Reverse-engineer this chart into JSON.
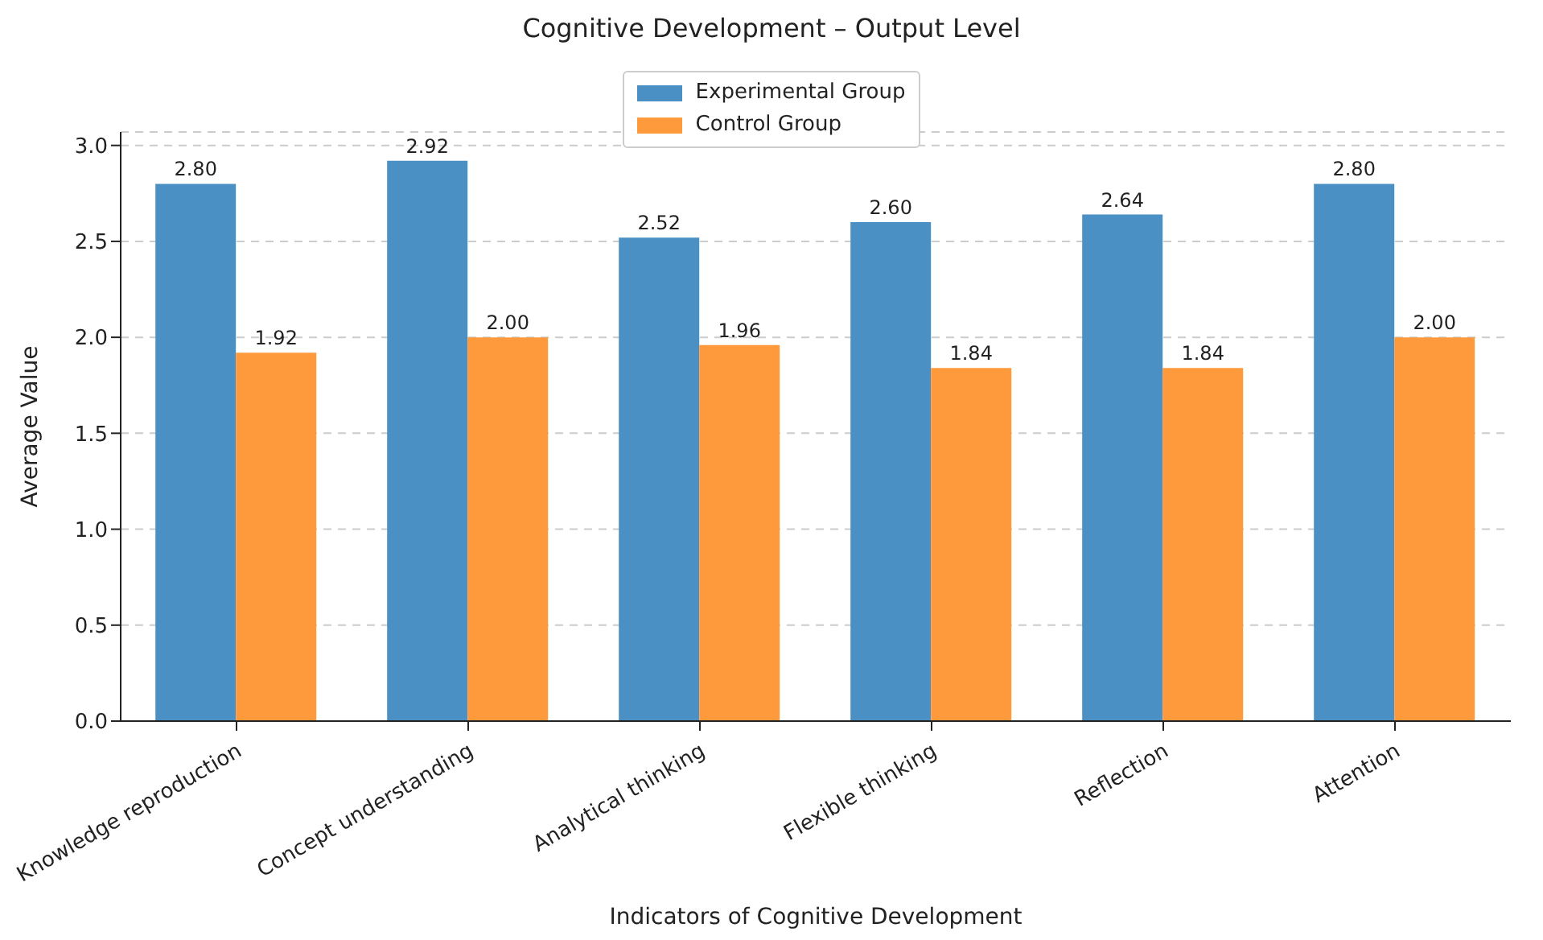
{
  "chart_data": {
    "type": "bar",
    "title": "Cognitive Development – Output Level",
    "xlabel": "Indicators of Cognitive Development",
    "ylabel": "Average Value",
    "categories": [
      "Knowledge reproduction",
      "Concept understanding",
      "Analytical thinking",
      "Flexible thinking",
      "Reflection",
      "Attention"
    ],
    "series": [
      {
        "name": "Experimental Group",
        "color": "#4a90c4",
        "values": [
          2.8,
          2.92,
          2.52,
          2.6,
          2.64,
          2.8
        ],
        "value_labels": [
          "2.80",
          "2.92",
          "2.52",
          "2.60",
          "2.64",
          "2.80"
        ]
      },
      {
        "name": "Control Group",
        "color": "#ff9a3c",
        "values": [
          1.92,
          2.0,
          1.96,
          1.84,
          1.84,
          2.0
        ],
        "value_labels": [
          "1.92",
          "2.00",
          "1.96",
          "1.84",
          "1.84",
          "2.00"
        ]
      }
    ],
    "ylim": [
      0,
      3.07
    ],
    "yticks": [
      {
        "value": 0,
        "label": "0.0"
      },
      {
        "value": 0.5,
        "label": "0.5"
      },
      {
        "value": 1,
        "label": "1.0"
      },
      {
        "value": 1.5,
        "label": "1.5"
      },
      {
        "value": 2,
        "label": "2.0"
      },
      {
        "value": 2.5,
        "label": "2.5"
      },
      {
        "value": 3,
        "label": "3.0"
      }
    ],
    "grid": "y",
    "legend": "top"
  }
}
